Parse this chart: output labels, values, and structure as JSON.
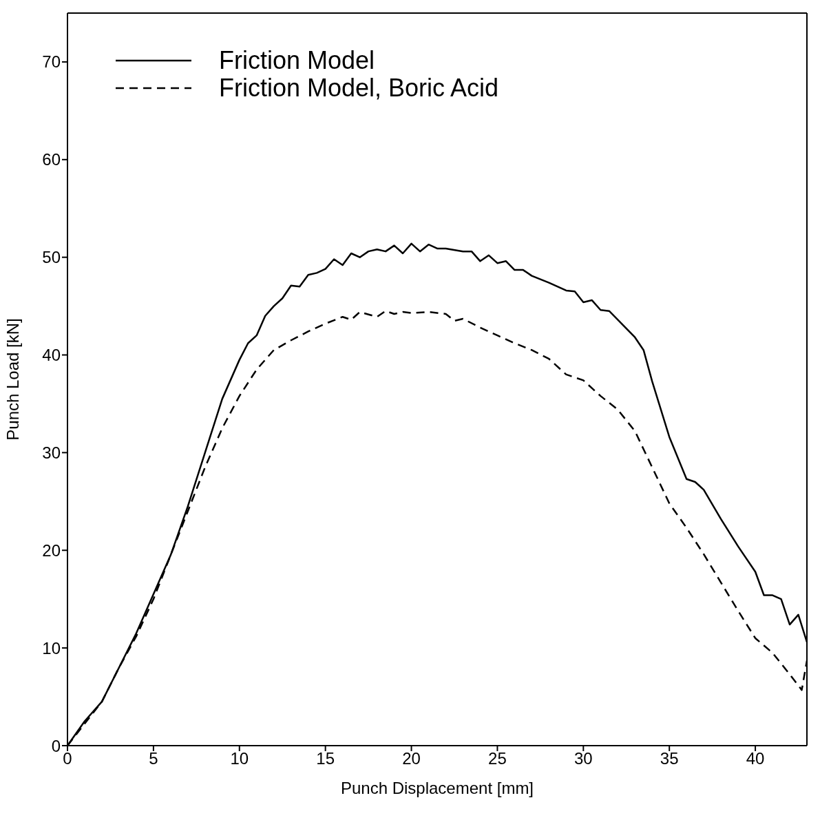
{
  "chart_data": {
    "type": "line",
    "xlabel": "Punch Displacement  [mm]",
    "ylabel": "Punch Load  [kN]",
    "xlim": [
      0,
      43
    ],
    "xticks": [
      0,
      5,
      10,
      15,
      20,
      25,
      30,
      35,
      40
    ],
    "ylim": [
      0,
      75
    ],
    "yticks": [
      0,
      10,
      20,
      30,
      40,
      50,
      60,
      70
    ],
    "legend": "top left",
    "grid": false,
    "marker": "none",
    "series": [
      {
        "name": "Friction Model",
        "color": "#000000",
        "line_style": "solid",
        "x": [
          0,
          1,
          2,
          3,
          4,
          5,
          6,
          7,
          8,
          9,
          10,
          10.5,
          11,
          11.5,
          12,
          12.5,
          13,
          13.5,
          14,
          14.5,
          15,
          15.5,
          16,
          16.5,
          17,
          17.5,
          18,
          18.5,
          19,
          19.5,
          20,
          20.5,
          21,
          21.5,
          22,
          23,
          23.5,
          24,
          24.5,
          25,
          25.5,
          26,
          26.5,
          27,
          28,
          29,
          29.5,
          30,
          30.5,
          31,
          31.5,
          32,
          33,
          33.5,
          34,
          35,
          36,
          36.5,
          37,
          38,
          39,
          40,
          40.5,
          41,
          41.5,
          42,
          42.5,
          43
        ],
        "values": [
          0,
          2.5,
          4.5,
          8,
          11.5,
          15.5,
          19.5,
          24.5,
          30,
          35.5,
          39.5,
          41.2,
          42,
          44,
          45,
          45.8,
          47.1,
          47,
          48.2,
          48.4,
          48.8,
          49.8,
          49.2,
          50.4,
          50,
          50.6,
          50.8,
          50.6,
          51.2,
          50.4,
          51.4,
          50.6,
          51.3,
          50.9,
          50.9,
          50.6,
          50.6,
          49.6,
          50.2,
          49.4,
          49.6,
          48.7,
          48.7,
          48.1,
          47.4,
          46.6,
          46.5,
          45.4,
          45.6,
          44.6,
          44.5,
          43.6,
          41.8,
          40.5,
          37.3,
          31.6,
          27.3,
          27,
          26.2,
          23.2,
          20.4,
          17.8,
          15.4,
          15.4,
          15,
          12.4,
          13.4,
          10.6
        ]
      },
      {
        "name": "Friction Model, Boric Acid",
        "color": "#000000",
        "line_style": "dashed",
        "x": [
          0,
          2,
          3,
          4,
          5,
          6,
          7,
          8,
          9,
          10,
          11,
          12,
          13,
          14,
          15,
          16,
          16.5,
          17,
          18,
          18.5,
          19,
          19.5,
          20,
          21,
          22,
          22.5,
          23,
          24,
          25,
          26,
          27,
          28,
          29,
          30,
          31,
          32,
          33,
          34,
          35,
          36,
          37,
          38,
          39,
          40,
          41,
          42,
          42.7,
          43
        ],
        "values": [
          0,
          4.5,
          8,
          11.2,
          15,
          19.5,
          24,
          28.5,
          32.5,
          35.8,
          38.5,
          40.5,
          41.5,
          42.4,
          43.2,
          43.9,
          43.6,
          44.4,
          43.9,
          44.5,
          44.2,
          44.4,
          44.3,
          44.4,
          44.2,
          43.5,
          43.7,
          42.8,
          42,
          41.2,
          40.5,
          39.6,
          38,
          37.4,
          35.8,
          34.4,
          32.2,
          28.5,
          24.8,
          22.3,
          19.6,
          16.7,
          13.8,
          11,
          9.5,
          7.3,
          5.7,
          8.7
        ]
      }
    ]
  }
}
